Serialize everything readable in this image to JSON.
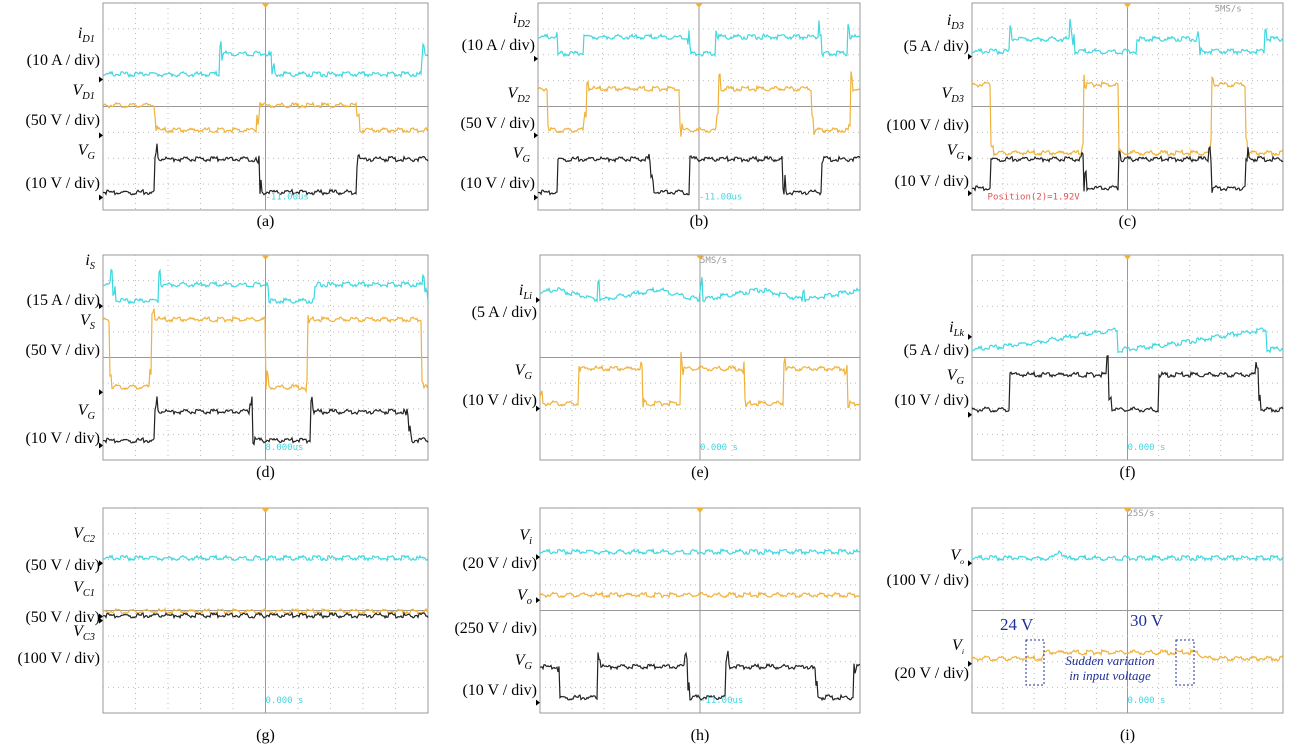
{
  "panels": [
    {
      "caption": "(a)",
      "channels": [
        {
          "symbol": "i",
          "subscript": "D1",
          "scale": "(10 A / div)"
        },
        {
          "symbol": "V",
          "subscript": "D1",
          "scale": "(50 V / div)"
        },
        {
          "symbol": "V",
          "subscript": "G",
          "scale": "(10 V / div)"
        }
      ],
      "annotations": [
        "-11.00us"
      ]
    },
    {
      "caption": "(b)",
      "channels": [
        {
          "symbol": "i",
          "subscript": "D2",
          "scale": "(10 A / div)"
        },
        {
          "symbol": "V",
          "subscript": "D2",
          "scale": "(50 V / div)"
        },
        {
          "symbol": "V",
          "subscript": "G",
          "scale": "(10 V / div)"
        }
      ],
      "annotations": [
        "-11.00us"
      ]
    },
    {
      "caption": "(c)",
      "channels": [
        {
          "symbol": "i",
          "subscript": "D3",
          "scale": "(5 A / div)"
        },
        {
          "symbol": "V",
          "subscript": "D3",
          "scale": "(100 V / div)"
        },
        {
          "symbol": "V",
          "subscript": "G",
          "scale": "(10 V / div)"
        }
      ],
      "annotations": [
        "5MS/s",
        "Position(2)=1.92V"
      ]
    },
    {
      "caption": "(d)",
      "channels": [
        {
          "symbol": "i",
          "subscript": "S",
          "scale": "(15 A / div)"
        },
        {
          "symbol": "V",
          "subscript": "S",
          "scale": "(50 V / div)"
        },
        {
          "symbol": "V",
          "subscript": "G",
          "scale": "(10 V / div)"
        }
      ],
      "annotations": [
        "8.000us"
      ]
    },
    {
      "caption": "(e)",
      "channels": [
        {
          "symbol": "i",
          "subscript": "Li",
          "scale": "(5 A / div)"
        },
        {
          "symbol": "V",
          "subscript": "G",
          "scale": "(10 V / div)"
        }
      ],
      "annotations": [
        "5MS/s",
        "0.000 s"
      ]
    },
    {
      "caption": "(f)",
      "channels": [
        {
          "symbol": "i",
          "subscript": "Lk",
          "scale": "(5 A / div)"
        },
        {
          "symbol": "V",
          "subscript": "G",
          "scale": "(10 V / div)"
        }
      ],
      "annotations": [
        "0.000 s"
      ]
    },
    {
      "caption": "(g)",
      "channels": [
        {
          "symbol": "V",
          "subscript": "C2",
          "scale": "(50 V / div)"
        },
        {
          "symbol": "V",
          "subscript": "C1",
          "scale": "(50 V / div)"
        },
        {
          "symbol": "V",
          "subscript": "C3",
          "scale": "(100 V / div)"
        }
      ],
      "annotations": [
        "0.000 s"
      ]
    },
    {
      "caption": "(h)",
      "channels": [
        {
          "symbol": "V",
          "subscript": "i",
          "scale": "(20 V / div)"
        },
        {
          "symbol": "V",
          "subscript": "o",
          "scale": "(250 V / div)"
        },
        {
          "symbol": "V",
          "subscript": "G",
          "scale": "(10 V / div)"
        }
      ],
      "annotations": [
        "-11.00us"
      ]
    },
    {
      "caption": "(i)",
      "channels": [
        {
          "symbol": "V",
          "subscript": "o",
          "scale": "(100 V / div)"
        },
        {
          "symbol": "V",
          "subscript": "i",
          "scale": "(20 V / div)"
        }
      ],
      "annotations": [
        "25S/s",
        "0.000 s"
      ],
      "callouts": [
        "24 V",
        "30 V"
      ],
      "note": [
        "Sudden variation",
        "in input voltage"
      ]
    }
  ]
}
